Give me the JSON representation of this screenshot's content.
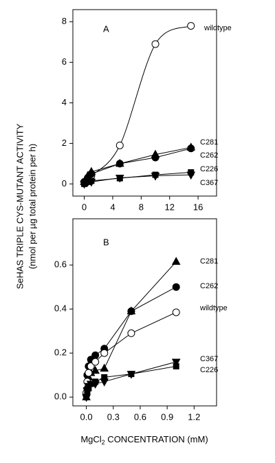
{
  "chart_data": [
    {
      "type": "line",
      "label": "A",
      "ylabel": [
        "SeHAS TRIPLE CYS-MUTANT ACTIVITY",
        "(nmol per µg total protein per h)"
      ],
      "xlim": [
        -1.6,
        18.6
      ],
      "xticks": [
        0,
        4,
        8,
        12,
        16
      ],
      "ylim": [
        -0.6,
        8.6
      ],
      "yticks": [
        0,
        2,
        4,
        6,
        8
      ],
      "series": [
        {
          "name": "wildtype",
          "marker": "open-circle",
          "smooth": true,
          "x": [
            0,
            0.5,
            1,
            5,
            10,
            15
          ],
          "values": [
            0.1,
            0.3,
            0.4,
            1.9,
            6.9,
            7.8
          ]
        },
        {
          "name": "C281",
          "marker": "triangle-up",
          "x": [
            0,
            0.5,
            1,
            5,
            10,
            15
          ],
          "values": [
            0.1,
            0.4,
            0.6,
            1.0,
            1.45,
            1.8
          ]
        },
        {
          "name": "C262",
          "marker": "circle",
          "x": [
            0,
            0.5,
            1,
            5,
            10,
            15
          ],
          "values": [
            0.1,
            0.3,
            0.5,
            1.0,
            1.3,
            1.75
          ]
        },
        {
          "name": "C226",
          "marker": "square",
          "x": [
            0,
            0.5,
            1,
            5,
            10,
            15
          ],
          "values": [
            0,
            0.1,
            0.15,
            0.28,
            0.45,
            0.57
          ]
        },
        {
          "name": "C367",
          "marker": "triangle-down",
          "x": [
            0,
            0.5,
            1,
            5,
            10,
            15
          ],
          "values": [
            0,
            0.1,
            0.1,
            0.3,
            0.4,
            0.45
          ]
        }
      ]
    },
    {
      "type": "line",
      "label": "B",
      "xlabel": [
        "MgCl",
        "2",
        " CONCENTRATION (mM)"
      ],
      "xlim": [
        -0.15,
        1.45
      ],
      "xticks": [
        {
          "value": 0,
          "label": "0.0"
        },
        0.3,
        0.6,
        0.9,
        1.2
      ],
      "ylim": [
        -0.04,
        0.81
      ],
      "yticks": [
        {
          "value": 0,
          "label": "0.0"
        },
        0.2,
        0.4,
        0.6
      ],
      "series": [
        {
          "name": "C281",
          "marker": "triangle-up",
          "x": [
            0,
            0.01,
            0.025,
            0.05,
            0.1,
            0.2,
            0.5,
            1.0
          ],
          "values": [
            0.0,
            0.05,
            0.09,
            0.11,
            0.12,
            0.13,
            0.39,
            0.615
          ]
        },
        {
          "name": "C262",
          "marker": "circle",
          "x": [
            0,
            0.01,
            0.025,
            0.05,
            0.1,
            0.2,
            0.5,
            1.0
          ],
          "values": [
            0.01,
            0.1,
            0.14,
            0.17,
            0.19,
            0.22,
            0.39,
            0.5
          ]
        },
        {
          "name": "wildtype",
          "marker": "open-circle",
          "x": [
            0,
            0.01,
            0.025,
            0.05,
            0.1,
            0.2,
            0.5,
            1.0
          ],
          "values": [
            0.02,
            0.07,
            0.11,
            0.14,
            0.16,
            0.2,
            0.29,
            0.385
          ]
        },
        {
          "name": "C367",
          "marker": "triangle-down",
          "x": [
            0,
            0.01,
            0.025,
            0.05,
            0.1,
            0.2,
            0.5,
            1.0
          ],
          "values": [
            0.0,
            0.03,
            0.05,
            0.06,
            0.06,
            0.07,
            0.105,
            0.16
          ]
        },
        {
          "name": "C226",
          "marker": "square",
          "x": [
            0,
            0.01,
            0.025,
            0.05,
            0.1,
            0.2,
            0.5,
            1.0
          ],
          "values": [
            0.0,
            0.02,
            0.04,
            0.06,
            0.07,
            0.09,
            0.105,
            0.14
          ]
        }
      ]
    }
  ]
}
